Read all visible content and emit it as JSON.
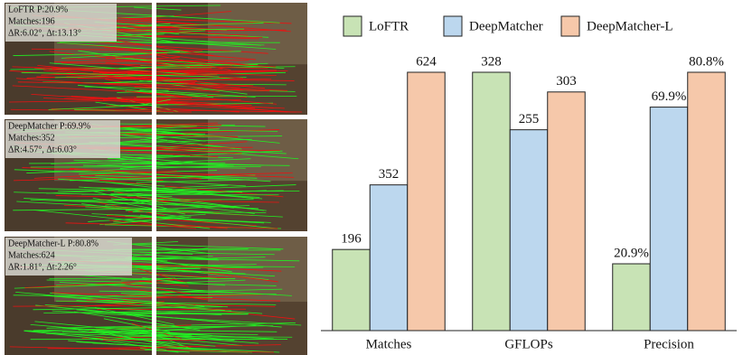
{
  "panels": [
    {
      "lines": [
        "LoFTR P:20.9%",
        "Matches:196",
        "ΔR:6.02°, Δt:13.13°"
      ]
    },
    {
      "lines": [
        "DeepMatcher P:69.9%",
        "Matches:352",
        "ΔR:4.57°, Δt:6.03°"
      ]
    },
    {
      "lines": [
        "DeepMatcher-L P:80.8%",
        "Matches:624",
        "ΔR:1.81°, Δt:2.26°"
      ]
    }
  ],
  "chart_data": {
    "type": "bar",
    "categories": [
      "Matches",
      "GFLOPs",
      "Precision"
    ],
    "series": [
      {
        "name": "LoFTR",
        "color": "#c8e3b5",
        "values": [
          196,
          328,
          20.9
        ],
        "value_labels": [
          "196",
          "328",
          "20.9%"
        ]
      },
      {
        "name": "DeepMatcher",
        "color": "#bcd7ee",
        "values": [
          352,
          255,
          69.9
        ],
        "value_labels": [
          "352",
          "255",
          "69.9%"
        ]
      },
      {
        "name": "DeepMatcher-L",
        "color": "#f6c8aa",
        "values": [
          624,
          303,
          80.8
        ],
        "value_labels": [
          "624",
          "303",
          "80.8%"
        ]
      }
    ]
  }
}
